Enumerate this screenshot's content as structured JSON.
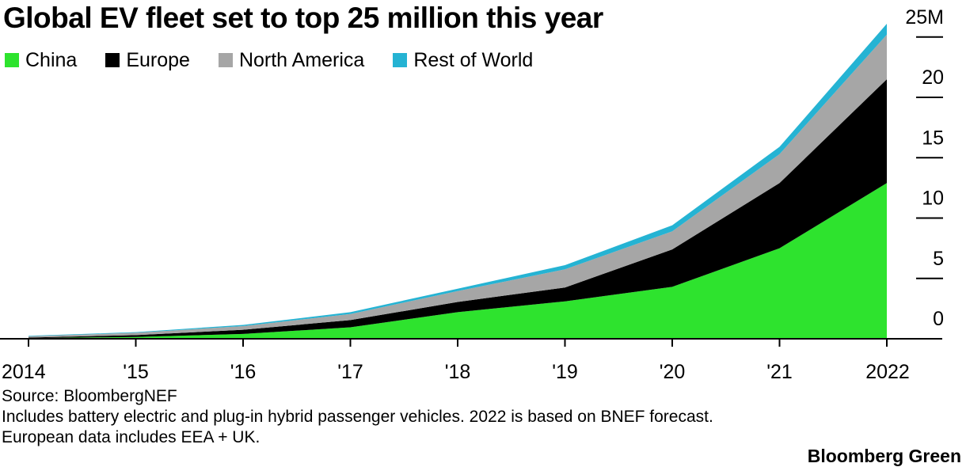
{
  "title": "Global EV fleet set to top 25 million this year",
  "legend": [
    {
      "label": "China",
      "color": "#2ee32e"
    },
    {
      "label": "Europe",
      "color": "#000000"
    },
    {
      "label": "North America",
      "color": "#a6a6a6"
    },
    {
      "label": "Rest of World",
      "color": "#25b3d3"
    }
  ],
  "chart_data": {
    "type": "area",
    "stacked": true,
    "title": "Global EV fleet set to top 25 million this year",
    "x": [
      2014,
      2015,
      2016,
      2017,
      2018,
      2019,
      2020,
      2021,
      2022
    ],
    "x_tick_labels": [
      "2014",
      "'15",
      "'16",
      "'17",
      "'18",
      "'19",
      "'20",
      "'21",
      "2022"
    ],
    "y_tick_labels": [
      "0",
      "5",
      "10",
      "15",
      "20",
      "25M"
    ],
    "y_ticks": [
      0,
      5,
      10,
      15,
      20,
      25
    ],
    "ylim": [
      0,
      26.5
    ],
    "y_axis_side": "right",
    "series": [
      {
        "name": "China",
        "color": "#2ee32e",
        "values": [
          0.05,
          0.15,
          0.4,
          0.95,
          2.2,
          3.1,
          4.3,
          7.5,
          12.9
        ]
      },
      {
        "name": "Europe",
        "color": "#000000",
        "values": [
          0.05,
          0.15,
          0.35,
          0.6,
          0.85,
          1.15,
          3.1,
          5.4,
          8.6
        ]
      },
      {
        "name": "North America",
        "color": "#a6a6a6",
        "values": [
          0.1,
          0.2,
          0.3,
          0.5,
          0.9,
          1.5,
          1.5,
          2.4,
          3.7
        ]
      },
      {
        "name": "Rest of World",
        "color": "#25b3d3",
        "values": [
          0.05,
          0.05,
          0.1,
          0.15,
          0.2,
          0.35,
          0.5,
          0.6,
          0.9
        ]
      }
    ],
    "legend_position": "top-left",
    "grid": false
  },
  "footer": {
    "source": "Source: BloombergNEF",
    "note1": "Includes battery electric and plug-in hybrid passenger vehicles. 2022 is based on BNEF forecast.",
    "note2": "European data includes EEA + UK."
  },
  "brand": "Bloomberg Green"
}
